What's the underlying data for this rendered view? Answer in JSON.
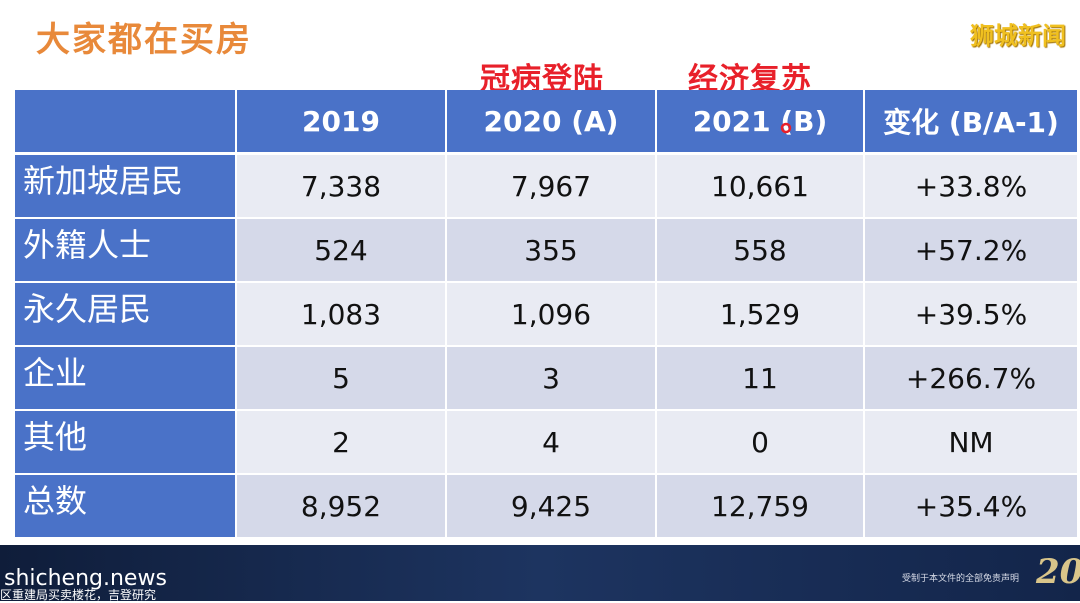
{
  "title": "大家都在买房",
  "watermark": "狮城新闻",
  "annotations": [
    "冠病登陆",
    "经济复苏"
  ],
  "table": {
    "header": [
      "",
      "2019",
      "2020 (A)",
      "2021 (B)",
      "变化 (B/A-1)"
    ],
    "rows": [
      [
        "新加坡居民",
        "7,338",
        "7,967",
        "10,661",
        "+33.8%"
      ],
      [
        "外籍人士",
        "524",
        "355",
        "558",
        "+57.2%"
      ],
      [
        "永久居民",
        "1,083",
        "1,096",
        "1,529",
        "+39.5%"
      ],
      [
        "企业",
        "5",
        "3",
        "11",
        "+266.7%"
      ],
      [
        "其他",
        "2",
        "4",
        "0",
        "NM"
      ],
      [
        "总数",
        "8,952",
        "9,425",
        "12,759",
        "+35.4%"
      ]
    ]
  },
  "footer": {
    "site": "shicheng.news",
    "source": "区重建局买卖楼花，吉登研究",
    "disclaimer": "受制于本文件的全部免责声明",
    "logo": "20"
  }
}
